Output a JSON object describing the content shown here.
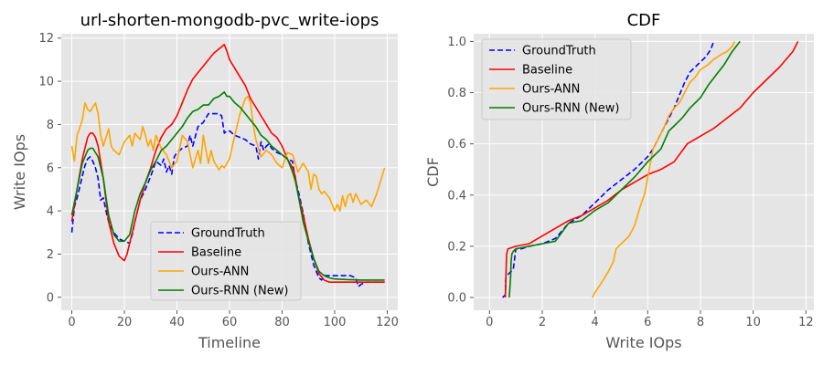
{
  "chart_data": [
    {
      "type": "line",
      "title": "url-shorten-mongodb-pvc_write-iops",
      "xlabel": "Timeline",
      "ylabel": "Write IOps",
      "xlim": [
        -4,
        124
      ],
      "ylim": [
        -0.6,
        12.2
      ],
      "xticks": [
        0,
        20,
        40,
        60,
        80,
        100,
        120
      ],
      "yticks": [
        0,
        2,
        4,
        6,
        8,
        10,
        12
      ],
      "xtick_labels": [
        "0",
        "20",
        "40",
        "60",
        "80",
        "100",
        "120"
      ],
      "ytick_labels": [
        "0",
        "2",
        "4",
        "6",
        "8",
        "10",
        "12"
      ],
      "grid": true,
      "legend_position": "lower-center",
      "series": [
        {
          "name": "GroundTruth",
          "color": "#0000ff",
          "dash": "dashed",
          "x": [
            0,
            1,
            2,
            4,
            5,
            6,
            7,
            8,
            9,
            10,
            11,
            12,
            13,
            14,
            16,
            18,
            20,
            22,
            23,
            24,
            26,
            28,
            30,
            32,
            34,
            35,
            36,
            37,
            38,
            39,
            40,
            42,
            44,
            45,
            46,
            48,
            50,
            52,
            54,
            56,
            57,
            58,
            59,
            60,
            62,
            64,
            66,
            68,
            70,
            71,
            72,
            73,
            74,
            75,
            76,
            78,
            80,
            82,
            84,
            85,
            86,
            88,
            90,
            92,
            94,
            95,
            96,
            98,
            100,
            102,
            104,
            106,
            108,
            109,
            110,
            112,
            114,
            116,
            118,
            119
          ],
          "y": [
            3.0,
            4.2,
            4.6,
            5.6,
            6.1,
            6.4,
            6.5,
            6.3,
            6.0,
            5.5,
            4.5,
            4.6,
            4.0,
            3.5,
            3.0,
            2.7,
            2.6,
            2.5,
            2.9,
            3.5,
            4.5,
            5.0,
            5.6,
            6.3,
            6.1,
            6.4,
            5.8,
            6.1,
            5.7,
            6.5,
            6.7,
            6.9,
            7.0,
            7.5,
            7.0,
            7.9,
            8.1,
            8.5,
            8.5,
            8.5,
            8.4,
            7.6,
            7.7,
            7.7,
            7.5,
            7.4,
            7.3,
            7.1,
            7.0,
            6.4,
            7.2,
            6.8,
            7.0,
            7.1,
            6.9,
            6.7,
            6.6,
            6.4,
            6.3,
            5.4,
            5.0,
            3.9,
            2.5,
            1.5,
            0.9,
            0.8,
            1.0,
            1.0,
            1.0,
            1.0,
            1.0,
            1.0,
            0.9,
            0.5,
            0.6,
            0.7,
            0.7,
            0.7,
            0.7,
            0.7
          ]
        },
        {
          "name": "Baseline",
          "color": "#ff0000",
          "dash": "solid",
          "x": [
            0,
            2,
            4,
            6,
            7,
            8,
            9,
            10,
            12,
            14,
            16,
            18,
            20,
            21,
            22,
            24,
            26,
            28,
            30,
            32,
            34,
            36,
            38,
            40,
            42,
            44,
            46,
            48,
            50,
            52,
            54,
            56,
            57,
            58,
            59,
            60,
            62,
            64,
            66,
            68,
            70,
            72,
            74,
            76,
            78,
            80,
            82,
            84,
            85,
            86,
            88,
            90,
            92,
            94,
            96,
            98,
            100,
            102,
            104,
            106,
            108,
            110,
            112,
            114,
            116,
            118,
            119
          ],
          "y": [
            3.5,
            5.0,
            6.4,
            7.4,
            7.6,
            7.6,
            7.4,
            7.0,
            5.5,
            3.5,
            2.5,
            1.9,
            1.7,
            2.0,
            2.5,
            3.5,
            4.5,
            5.3,
            6.0,
            6.8,
            7.4,
            7.8,
            8.0,
            8.4,
            9.0,
            9.6,
            10.1,
            10.4,
            10.7,
            11.0,
            11.3,
            11.5,
            11.6,
            11.7,
            11.4,
            11.0,
            10.6,
            10.2,
            9.8,
            9.2,
            8.8,
            8.4,
            8.0,
            7.6,
            7.4,
            7.0,
            6.4,
            6.0,
            5.6,
            4.8,
            3.8,
            2.7,
            1.8,
            1.1,
            0.8,
            0.7,
            0.7,
            0.7,
            0.7,
            0.7,
            0.7,
            0.7,
            0.7,
            0.7,
            0.7,
            0.7,
            0.7
          ]
        },
        {
          "name": "Ours-ANN",
          "color": "#ffa500",
          "dash": "solid",
          "x": [
            0,
            1,
            2,
            4,
            5,
            6,
            7,
            8,
            9,
            10,
            11,
            12,
            14,
            15,
            16,
            18,
            20,
            22,
            23,
            24,
            26,
            27,
            28,
            29,
            30,
            31,
            32,
            34,
            36,
            38,
            40,
            42,
            44,
            46,
            48,
            49,
            50,
            52,
            53,
            54,
            55,
            56,
            57,
            58,
            60,
            62,
            64,
            66,
            67,
            68,
            69,
            70,
            72,
            74,
            76,
            78,
            80,
            82,
            84,
            86,
            88,
            90,
            91,
            92,
            93,
            94,
            95,
            96,
            98,
            100,
            101,
            102,
            103,
            104,
            105,
            106,
            107,
            108,
            110,
            112,
            114,
            116,
            118,
            119
          ],
          "y": [
            7.0,
            6.3,
            7.5,
            8.2,
            9.0,
            8.7,
            8.6,
            8.8,
            9.0,
            8.5,
            7.5,
            7.0,
            7.8,
            7.0,
            6.8,
            6.6,
            7.2,
            7.5,
            7.0,
            7.6,
            7.3,
            7.9,
            7.5,
            7.0,
            7.3,
            6.8,
            7.5,
            6.9,
            6.6,
            6.0,
            6.3,
            7.5,
            7.2,
            6.0,
            6.8,
            6.2,
            7.5,
            6.2,
            6.8,
            6.3,
            6.1,
            5.9,
            6.1,
            6.0,
            6.4,
            7.5,
            8.5,
            9.2,
            9.3,
            9.0,
            8.0,
            7.3,
            6.5,
            6.8,
            6.6,
            6.2,
            6.0,
            6.7,
            6.6,
            5.8,
            6.2,
            5.8,
            5.0,
            5.7,
            5.6,
            5.0,
            4.8,
            4.9,
            4.6,
            4.0,
            4.3,
            4.0,
            4.7,
            4.2,
            4.7,
            4.8,
            4.4,
            4.8,
            4.3,
            4.5,
            4.2,
            4.8,
            5.6,
            6.0
          ]
        },
        {
          "name": "Ours-RNN (New)",
          "color": "#008000",
          "dash": "solid",
          "x": [
            0,
            2,
            4,
            6,
            7,
            8,
            10,
            12,
            14,
            16,
            18,
            20,
            22,
            24,
            26,
            28,
            30,
            32,
            34,
            36,
            38,
            40,
            42,
            44,
            46,
            48,
            50,
            52,
            54,
            56,
            57,
            58,
            59,
            60,
            62,
            64,
            66,
            68,
            70,
            72,
            74,
            76,
            78,
            80,
            82,
            84,
            85,
            86,
            88,
            90,
            92,
            94,
            96,
            98,
            100,
            105,
            110,
            115,
            119
          ],
          "y": [
            3.8,
            5.0,
            6.2,
            6.8,
            6.9,
            6.9,
            6.5,
            5.5,
            3.8,
            2.9,
            2.6,
            2.6,
            2.9,
            4.0,
            4.8,
            5.3,
            5.9,
            6.3,
            6.8,
            7.0,
            7.3,
            7.6,
            7.9,
            8.3,
            8.6,
            8.7,
            8.9,
            8.9,
            9.2,
            9.3,
            9.4,
            9.5,
            9.3,
            9.3,
            9.0,
            8.8,
            8.5,
            8.2,
            7.9,
            7.5,
            7.3,
            7.0,
            6.8,
            6.6,
            6.4,
            5.8,
            5.4,
            4.8,
            3.5,
            2.6,
            1.8,
            1.2,
            1.0,
            0.9,
            0.85,
            0.82,
            0.8,
            0.8,
            0.8
          ]
        }
      ]
    },
    {
      "type": "line",
      "title": "CDF",
      "xlabel": "Write IOps",
      "ylabel": "CDF",
      "xlim": [
        -0.6,
        12.3
      ],
      "ylim": [
        -0.05,
        1.03
      ],
      "xticks": [
        0,
        2,
        4,
        6,
        8,
        10,
        12
      ],
      "yticks": [
        0.0,
        0.2,
        0.4,
        0.6,
        0.8,
        1.0
      ],
      "xtick_labels": [
        "0",
        "2",
        "4",
        "6",
        "8",
        "10",
        "12"
      ],
      "ytick_labels": [
        "0.0",
        "0.2",
        "0.4",
        "0.6",
        "0.8",
        "1.0"
      ],
      "grid": true,
      "legend_position": "upper-left",
      "series": [
        {
          "name": "GroundTruth",
          "color": "#0000ff",
          "dash": "dashed",
          "x": [
            0.5,
            0.6,
            0.62,
            0.7,
            0.8,
            0.9,
            0.95,
            1.0,
            1.2,
            1.5,
            2.0,
            2.5,
            3.0,
            3.5,
            4.0,
            4.5,
            5.0,
            5.5,
            6.0,
            6.2,
            6.4,
            6.6,
            6.8,
            7.0,
            7.2,
            7.4,
            7.6,
            7.8,
            8.0,
            8.2,
            8.4,
            8.5
          ],
          "y": [
            0.0,
            0.01,
            0.08,
            0.09,
            0.1,
            0.11,
            0.15,
            0.19,
            0.19,
            0.2,
            0.21,
            0.23,
            0.29,
            0.32,
            0.37,
            0.42,
            0.46,
            0.5,
            0.55,
            0.58,
            0.62,
            0.66,
            0.7,
            0.74,
            0.79,
            0.84,
            0.88,
            0.9,
            0.92,
            0.94,
            0.97,
            1.0
          ]
        },
        {
          "name": "Baseline",
          "color": "#ff0000",
          "dash": "solid",
          "x": [
            0.6,
            0.65,
            0.7,
            1.0,
            1.5,
            2.0,
            2.5,
            3.0,
            3.5,
            4.0,
            4.5,
            5.0,
            5.5,
            6.0,
            6.5,
            7.0,
            7.5,
            8.0,
            8.5,
            9.0,
            9.5,
            10.0,
            10.5,
            11.0,
            11.5,
            11.7
          ],
          "y": [
            0.0,
            0.17,
            0.19,
            0.2,
            0.21,
            0.24,
            0.27,
            0.3,
            0.32,
            0.35,
            0.38,
            0.42,
            0.45,
            0.48,
            0.5,
            0.53,
            0.6,
            0.63,
            0.66,
            0.7,
            0.74,
            0.8,
            0.85,
            0.9,
            0.96,
            1.0
          ]
        },
        {
          "name": "Ours-ANN",
          "color": "#ffa500",
          "dash": "solid",
          "x": [
            3.9,
            4.0,
            4.2,
            4.5,
            4.7,
            4.8,
            5.0,
            5.3,
            5.5,
            5.7,
            5.9,
            6.0,
            6.2,
            6.4,
            6.6,
            6.8,
            7.0,
            7.2,
            7.4,
            7.6,
            7.8,
            8.0,
            8.3,
            8.5,
            8.8,
            9.0,
            9.2,
            9.3
          ],
          "y": [
            0.0,
            0.02,
            0.05,
            0.1,
            0.14,
            0.19,
            0.21,
            0.24,
            0.28,
            0.35,
            0.41,
            0.47,
            0.58,
            0.62,
            0.66,
            0.71,
            0.74,
            0.76,
            0.8,
            0.84,
            0.86,
            0.89,
            0.91,
            0.93,
            0.95,
            0.96,
            0.98,
            1.0
          ]
        },
        {
          "name": "Ours-RNN (New)",
          "color": "#008000",
          "dash": "solid",
          "x": [
            0.75,
            0.8,
            0.82,
            0.85,
            0.9,
            1.0,
            1.5,
            2.0,
            2.5,
            3.0,
            3.5,
            4.0,
            4.5,
            5.0,
            5.5,
            6.0,
            6.5,
            6.8,
            7.0,
            7.3,
            7.6,
            8.0,
            8.3,
            8.6,
            8.9,
            9.2,
            9.5
          ],
          "y": [
            0.0,
            0.08,
            0.14,
            0.17,
            0.18,
            0.19,
            0.2,
            0.21,
            0.22,
            0.29,
            0.3,
            0.34,
            0.37,
            0.42,
            0.47,
            0.53,
            0.58,
            0.65,
            0.67,
            0.7,
            0.74,
            0.78,
            0.83,
            0.87,
            0.91,
            0.96,
            1.0
          ]
        }
      ]
    }
  ]
}
